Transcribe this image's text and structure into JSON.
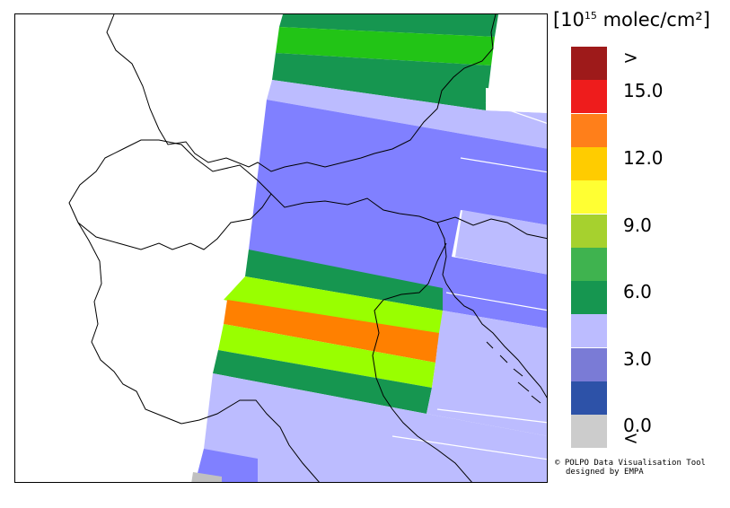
{
  "colorbar": {
    "unit_prefix": "[10",
    "unit_exp": "15",
    "unit_suffix": " molec/cm²]",
    "bins": [
      {
        "color": "#9e1a1a",
        "label": ">"
      },
      {
        "color": "#ee1c1c",
        "label": "15.0"
      },
      {
        "color": "#ff7f1a",
        "label": ""
      },
      {
        "color": "#ffcc00",
        "label": "12.0"
      },
      {
        "color": "#ffff33",
        "label": ""
      },
      {
        "color": "#a6d12e",
        "label": "9.0"
      },
      {
        "color": "#3fb34f",
        "label": ""
      },
      {
        "color": "#169650",
        "label": "6.0"
      },
      {
        "color": "#bcbcff",
        "label": ""
      },
      {
        "color": "#7a7bd6",
        "label": "3.0"
      },
      {
        "color": "#2d52a8",
        "label": ""
      },
      {
        "color": "#cccccc",
        "label": "0.0"
      }
    ],
    "bottom_label": "<"
  },
  "credit": {
    "line1": "© POLPO Data Visualisation Tool",
    "line2": "designed by EMPA"
  },
  "swath_colors": {
    "dark_green": "#169650",
    "bright_green": "#22c416",
    "lime": "#99ff00",
    "orange": "#ff8000",
    "light_lavender": "#bcbcff",
    "periwinkle": "#8080ff",
    "grey": "#c0c0c0"
  }
}
